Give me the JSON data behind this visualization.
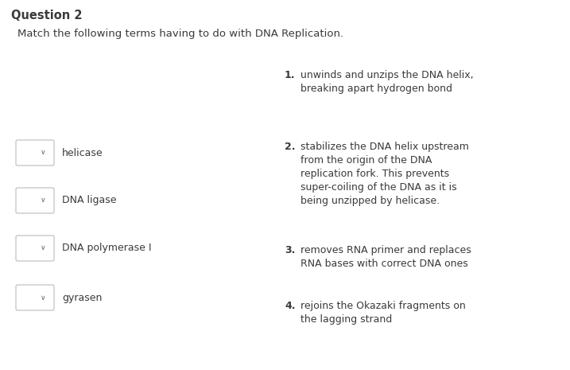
{
  "title": "Question 2",
  "subtitle": "Match the following terms having to do with DNA Replication.",
  "bg_color": "#ffffff",
  "text_color": "#3a3a3a",
  "terms": [
    "helicase",
    "DNA ligase",
    "DNA polymerase I",
    "gyrasen"
  ],
  "box_edge_color": "#bbbbbb",
  "font_size_title": 10.5,
  "font_size_subtitle": 9.5,
  "font_size_text": 9.0,
  "def_blocks": [
    {
      "num": "1.",
      "lines": [
        "unwinds and unzips the DNA helix,",
        "breaking apart hydrogen bond"
      ]
    },
    {
      "num": "2.",
      "lines": [
        "stabilizes the DNA helix upstream",
        "from the origin of the DNA",
        "replication fork. This prevents",
        "super-coiling of the DNA as it is",
        "being unzipped by helicase."
      ]
    },
    {
      "num": "3.",
      "lines": [
        "removes RNA primer and replaces",
        "RNA bases with correct DNA ones"
      ]
    },
    {
      "num": "4.",
      "lines": [
        "rejoins the Okazaki fragments on",
        "the lagging strand"
      ]
    }
  ]
}
